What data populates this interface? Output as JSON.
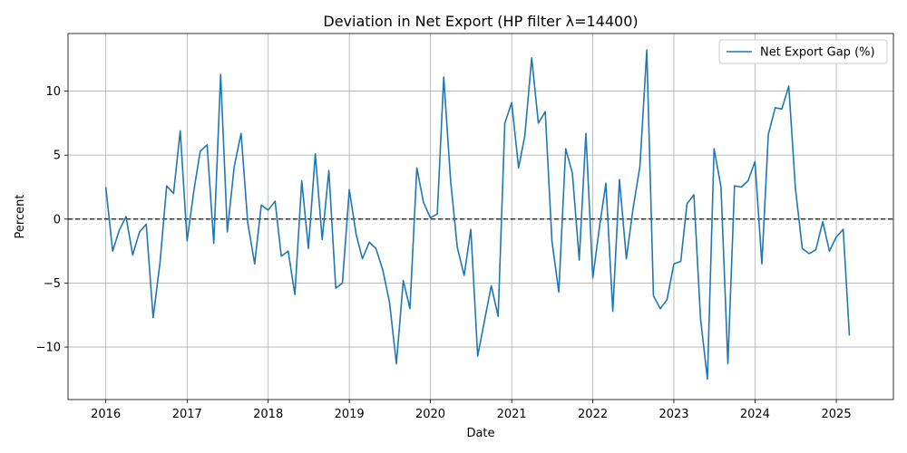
{
  "chart_data": {
    "type": "line",
    "title": "Deviation in Net Export (HP filter λ=14400)",
    "xlabel": "Date",
    "ylabel": "Percent",
    "xlim": [
      "2015-07-15",
      "2025-09-15"
    ],
    "ylim": [
      -14.1,
      14.5
    ],
    "x_ticks": [
      "2016",
      "2017",
      "2018",
      "2019",
      "2020",
      "2021",
      "2022",
      "2023",
      "2024",
      "2025"
    ],
    "y_ticks": [
      -10,
      -5,
      0,
      5,
      10
    ],
    "y_tick_labels": [
      "−10",
      "−5",
      "0",
      "5",
      "10"
    ],
    "grid": true,
    "legend_position": "upper-right",
    "reference_line": {
      "y": 0,
      "style": "dashed",
      "color": "#000000"
    },
    "series": [
      {
        "name": "Net Export Gap (%)",
        "color": "#1f77b4",
        "x": [
          "2016-01",
          "2016-02",
          "2016-03",
          "2016-04",
          "2016-05",
          "2016-06",
          "2016-07",
          "2016-08",
          "2016-09",
          "2016-10",
          "2016-11",
          "2016-12",
          "2017-01",
          "2017-02",
          "2017-03",
          "2017-04",
          "2017-05",
          "2017-06",
          "2017-07",
          "2017-08",
          "2017-09",
          "2017-10",
          "2017-11",
          "2017-12",
          "2018-01",
          "2018-02",
          "2018-03",
          "2018-04",
          "2018-05",
          "2018-06",
          "2018-07",
          "2018-08",
          "2018-09",
          "2018-10",
          "2018-11",
          "2018-12",
          "2019-01",
          "2019-02",
          "2019-03",
          "2019-04",
          "2019-05",
          "2019-06",
          "2019-07",
          "2019-08",
          "2019-09",
          "2019-10",
          "2019-11",
          "2019-12",
          "2020-01",
          "2020-02",
          "2020-03",
          "2020-04",
          "2020-05",
          "2020-06",
          "2020-07",
          "2020-08",
          "2020-09",
          "2020-10",
          "2020-11",
          "2020-12",
          "2021-01",
          "2021-02",
          "2021-03",
          "2021-04",
          "2021-05",
          "2021-06",
          "2021-07",
          "2021-08",
          "2021-09",
          "2021-10",
          "2021-11",
          "2021-12",
          "2022-01",
          "2022-02",
          "2022-03",
          "2022-04",
          "2022-05",
          "2022-06",
          "2022-07",
          "2022-08",
          "2022-09",
          "2022-10",
          "2022-11",
          "2022-12",
          "2023-01",
          "2023-02",
          "2023-03",
          "2023-04",
          "2023-05",
          "2023-06",
          "2023-07",
          "2023-08",
          "2023-09",
          "2023-10",
          "2023-11",
          "2023-12",
          "2024-01",
          "2024-02",
          "2024-03",
          "2024-04",
          "2024-05",
          "2024-06",
          "2024-07",
          "2024-08",
          "2024-09",
          "2024-10",
          "2024-11",
          "2024-12",
          "2025-01",
          "2025-02",
          "2025-03"
        ],
        "values": [
          2.5,
          -2.5,
          -0.9,
          0.2,
          -2.8,
          -1.0,
          -0.4,
          -7.7,
          -3.4,
          2.6,
          2.0,
          6.9,
          -1.7,
          2.3,
          5.3,
          5.8,
          -1.9,
          11.3,
          -1.0,
          4.1,
          6.7,
          -0.3,
          -3.5,
          1.1,
          0.7,
          1.4,
          -2.9,
          -2.5,
          -5.9,
          3.0,
          -2.3,
          5.1,
          -1.6,
          3.8,
          -5.4,
          -5.0,
          2.3,
          -1.2,
          -3.1,
          -1.8,
          -2.3,
          -4.0,
          -6.5,
          -11.3,
          -4.8,
          -7.0,
          4.0,
          1.3,
          0.1,
          0.4,
          11.1,
          3.0,
          -2.2,
          -4.4,
          -0.8,
          -10.7,
          -7.9,
          -5.2,
          -7.6,
          7.5,
          9.1,
          4.0,
          6.5,
          12.6,
          7.5,
          8.4,
          -1.7,
          -5.7,
          5.5,
          3.6,
          -3.2,
          6.7,
          -4.6,
          -0.5,
          2.8,
          -7.2,
          3.1,
          -3.1,
          0.8,
          4.1,
          13.2,
          -6.0,
          -7.0,
          -6.3,
          -3.5,
          -3.3,
          1.2,
          1.9,
          -7.8,
          -12.5,
          5.5,
          2.5,
          -11.3,
          2.6,
          2.5,
          3.0,
          4.5,
          -3.5,
          6.6,
          8.7,
          8.6,
          10.4,
          2.4,
          -2.3,
          -2.7,
          -2.4,
          -0.2,
          -2.5,
          -1.4,
          -0.8,
          -9.1
        ]
      }
    ]
  }
}
